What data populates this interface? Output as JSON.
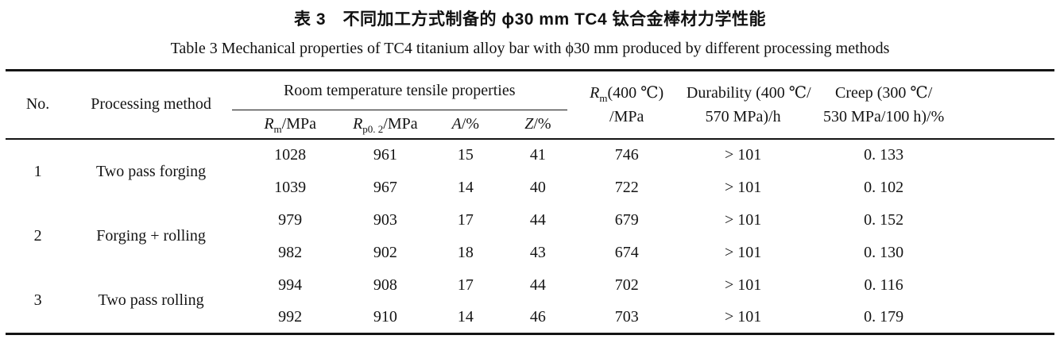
{
  "title": {
    "zh": "表 3　不同加工方式制备的 ϕ30 mm TC4 钛合金棒材力学性能",
    "en": "Table 3   Mechanical properties of TC4 titanium alloy bar with ϕ30 mm produced by different processing methods"
  },
  "table": {
    "header": {
      "no": "No.",
      "method": "Processing method",
      "tensile_group": "Room temperature tensile properties",
      "rm": {
        "sym": "R",
        "sub": "m",
        "unit": "/MPa"
      },
      "rp02": {
        "sym": "R",
        "sub": "p0. 2",
        "unit": "/MPa"
      },
      "a": {
        "sym": "A",
        "unit": "/%"
      },
      "z": {
        "sym": "Z",
        "unit": "/%"
      },
      "rm400": {
        "sym": "R",
        "sub": "m",
        "line1rest": "(400 ℃)",
        "line2": "/MPa"
      },
      "durability": {
        "line1": "Durability (400 ℃/",
        "line2": "570 MPa)/h"
      },
      "creep": {
        "line1": "Creep (300 ℃/",
        "line2": "530 MPa/100 h)/%"
      }
    },
    "groups": [
      {
        "no": "1",
        "method": "Two pass forging",
        "rows": [
          [
            "1028",
            "961",
            "15",
            "41",
            "746",
            "> 101",
            "0. 133"
          ],
          [
            "1039",
            "967",
            "14",
            "40",
            "722",
            "> 101",
            "0. 102"
          ]
        ]
      },
      {
        "no": "2",
        "method": "Forging + rolling",
        "rows": [
          [
            "979",
            "903",
            "17",
            "44",
            "679",
            "> 101",
            "0. 152"
          ],
          [
            "982",
            "902",
            "18",
            "43",
            "674",
            "> 101",
            "0. 130"
          ]
        ]
      },
      {
        "no": "3",
        "method": "Two pass rolling",
        "rows": [
          [
            "994",
            "908",
            "17",
            "44",
            "702",
            "> 101",
            "0. 116"
          ],
          [
            "992",
            "910",
            "14",
            "46",
            "703",
            "> 101",
            "0. 179"
          ]
        ]
      }
    ]
  }
}
